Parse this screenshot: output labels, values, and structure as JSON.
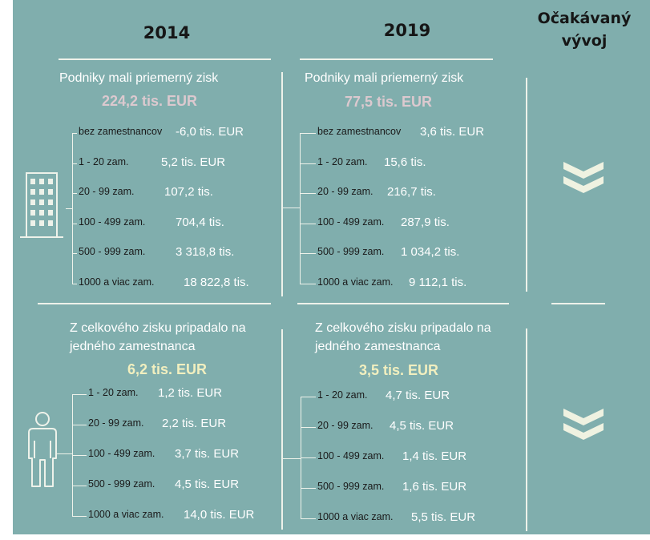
{
  "headers": {
    "year_a": "2014",
    "year_b": "2019",
    "trend_line1": "Očakávaný",
    "trend_line2": "vývoj"
  },
  "profit": {
    "a": {
      "title": "Podniky mali priemerný zisk",
      "total": "224,2 tis. EUR",
      "items": [
        {
          "label": "bez zamestnancov",
          "value": "-6,0 tis. EUR"
        },
        {
          "label": "1 - 20 zam.",
          "value": "5,2 tis. EUR"
        },
        {
          "label": "20 - 99 zam.",
          "value": "107,2 tis."
        },
        {
          "label": "100 - 499 zam.",
          "value": "704,4 tis."
        },
        {
          "label": "500 - 999 zam.",
          "value": "3 318,8 tis."
        },
        {
          "label": "1000 a viac zam.",
          "value": "18 822,8 tis."
        }
      ]
    },
    "b": {
      "title": "Podniky mali priemerný zisk",
      "total": "77,5 tis. EUR",
      "items": [
        {
          "label": "bez zamestnancov",
          "value": "3,6 tis. EUR"
        },
        {
          "label": "1 - 20 zam.",
          "value": "15,6 tis."
        },
        {
          "label": "20 - 99 zam.",
          "value": "216,7 tis."
        },
        {
          "label": "100 - 499 zam.",
          "value": "287,9 tis."
        },
        {
          "label": "500 - 999 zam.",
          "value": "1 034,2 tis."
        },
        {
          "label": "1000 a viac zam.",
          "value": "9 112,1 tis."
        }
      ]
    }
  },
  "per_employee": {
    "a": {
      "title_line1": "Z celkového zisku pripadalo na",
      "title_line2": "jedného zamestnanca",
      "total": "6,2 tis. EUR",
      "items": [
        {
          "label": "1 - 20 zam.",
          "value": "1,2 tis. EUR"
        },
        {
          "label": "20 - 99 zam.",
          "value": "2,2 tis. EUR"
        },
        {
          "label": "100 - 499 zam.",
          "value": "3,7 tis. EUR"
        },
        {
          "label": "500 - 999 zam.",
          "value": "4,5 tis. EUR"
        },
        {
          "label": "1000 a viac zam.",
          "value": "14,0 tis. EUR"
        }
      ]
    },
    "b": {
      "title_line1": "Z celkového zisku pripadalo na",
      "title_line2": "jedného zamestnanca",
      "total": "3,5 tis. EUR",
      "items": [
        {
          "label": "1 - 20 zam.",
          "value": "4,7 tis. EUR"
        },
        {
          "label": "20 - 99 zam.",
          "value": "4,5 tis. EUR"
        },
        {
          "label": "100 - 499 zam.",
          "value": "1,4 tis. EUR"
        },
        {
          "label": "500 - 999 zam.",
          "value": "1,6 tis. EUR"
        },
        {
          "label": "1000 a viac zam.",
          "value": "5,5 tis. EUR"
        }
      ]
    }
  },
  "icons": {
    "building": "building-icon",
    "person": "person-icon",
    "trend": "double-chevron-down-icon"
  },
  "colors": {
    "background": "#80AEAD",
    "lines": "#eef2ea",
    "total_profit": "#dcc9cf",
    "total_per_employee": "#f1efbf",
    "chevron": "#eff2e1"
  }
}
